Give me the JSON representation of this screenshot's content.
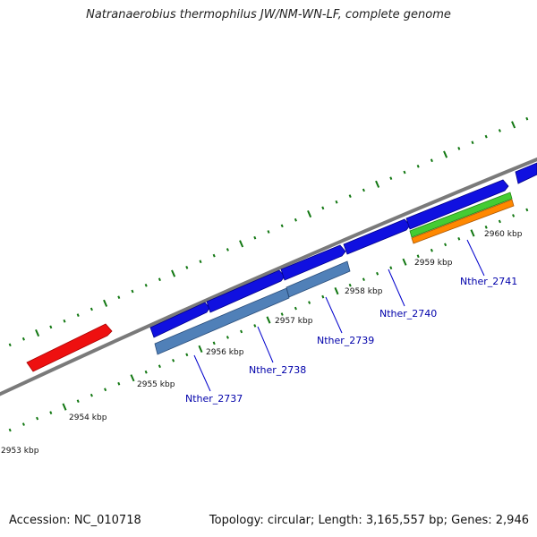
{
  "title": "Natranaerobius thermophilus JW/NM-WN-LF, complete genome",
  "footer": {
    "accession": "Accession: NC_010718",
    "stats": "Topology: circular; Length: 3,165,557 bp; Genes: 2,946"
  },
  "kbp_labels": [
    "2953 kbp",
    "2954 kbp",
    "2955 kbp",
    "2956 kbp",
    "2957 kbp",
    "2958 kbp",
    "2959 kbp",
    "2960 kbp"
  ],
  "gene_labels": [
    "Nther_2737",
    "Nther_2738",
    "Nther_2739",
    "Nther_2740",
    "Nther_2741"
  ],
  "colors": {
    "backbone": "#7a7a7a",
    "forward_gene": "#1010e0",
    "rna_gene": "#ee1010",
    "cds_feature": "#5080b8",
    "green_feature": "#44cc33",
    "orange_feature": "#ff8800",
    "tick": "#117711",
    "label_line": "#0000cc"
  }
}
